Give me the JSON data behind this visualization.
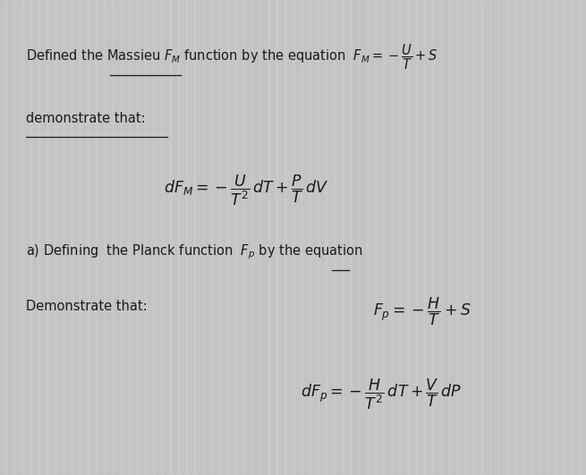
{
  "background_color": "#c8c8c8",
  "stripe_color": "#d0d0d0",
  "text_color": "#1a1a1a",
  "figsize": [
    6.55,
    5.31
  ],
  "dpi": 100,
  "fs_body": 10.5,
  "fs_eq": 12.5
}
